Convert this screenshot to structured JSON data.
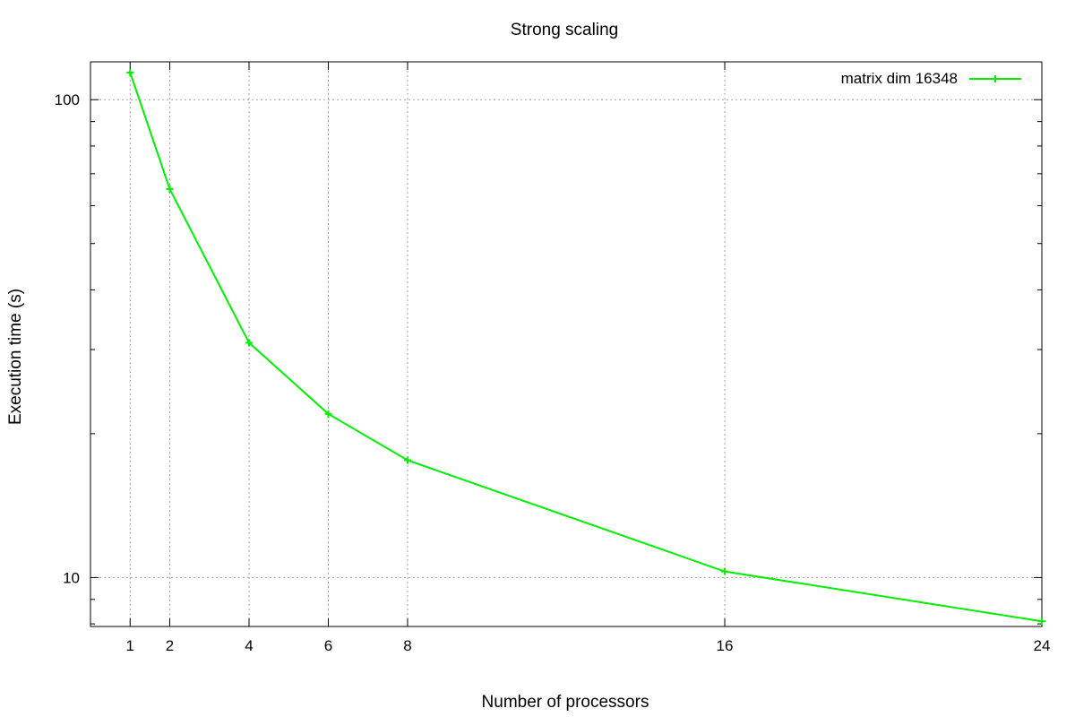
{
  "chart_data": {
    "type": "line",
    "title": "Strong scaling",
    "xlabel": "Number of processors",
    "ylabel": "Execution time (s)",
    "x_scale": "linear",
    "y_scale": "log",
    "xlim": [
      0,
      24
    ],
    "ylim": [
      7.9,
      120
    ],
    "x_ticks": [
      1,
      2,
      4,
      6,
      8,
      16,
      24
    ],
    "y_ticks_labeled": [
      10,
      100
    ],
    "y_minor_ticks": [
      20,
      30,
      40,
      50,
      60,
      70,
      80,
      90
    ],
    "grid": true,
    "legend_position": "top-right",
    "series_color": "#00ee00",
    "series": [
      {
        "name": "matrix dim 16348",
        "x": [
          1,
          2,
          4,
          6,
          8,
          16,
          24
        ],
        "y": [
          114,
          65,
          31,
          22,
          17.6,
          10.3,
          8.1
        ]
      }
    ]
  }
}
